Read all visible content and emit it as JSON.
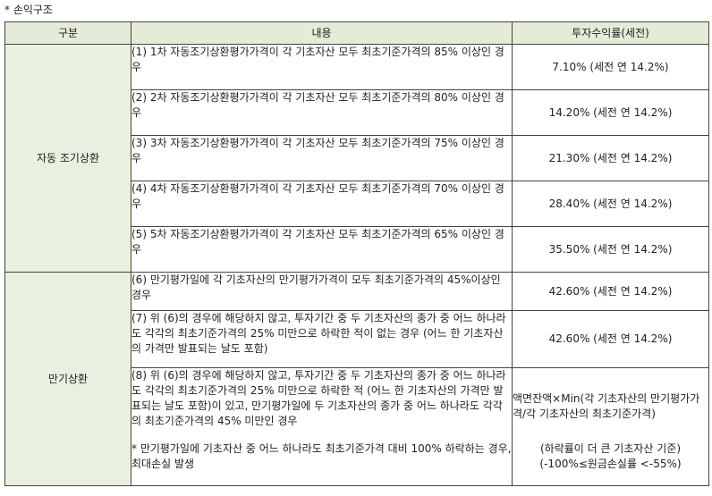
{
  "section_title": "* 손익구조",
  "headers": {
    "category": "구분",
    "description": "내용",
    "return": "투자수익률(세전)"
  },
  "early_redemption": {
    "label": "자동 조기상환",
    "rows": [
      {
        "desc": "(1) 1차 자동조기상환평가가격이 각 기초자산 모두 최초기준가격의 85% 이상인 경우",
        "rate": "7.10% (세전 연 14.2%)"
      },
      {
        "desc": "(2) 2차 자동조기상환평가가격이 각 기초자산 모두 최초기준가격의 80% 이상인 경우",
        "rate": "14.20% (세전 연 14.2%)"
      },
      {
        "desc": "(3) 3차 자동조기상환평가가격이 각 기초자산 모두 최초기준가격의 75% 이상인 경우",
        "rate": "21.30% (세전 연 14.2%)"
      },
      {
        "desc": "(4) 4차 자동조기상환평가가격이 각 기초자산 모두 최초기준가격의 70% 이상인 경우",
        "rate": "28.40% (세전 연 14.2%)"
      },
      {
        "desc": "(5) 5차 자동조기상환평가가격이 각 기초자산 모두 최초기준가격의 65% 이상인 경우",
        "rate": "35.50% (세전 연 14.2%)"
      }
    ]
  },
  "maturity": {
    "label": "만기상환",
    "row6": {
      "desc": "(6) 만기평가일에 각 기초자산의 만기평가가격이 모두 최초기준가격의 45%이상인 경우",
      "rate": "42.60% (세전 연 14.2%)"
    },
    "row7": {
      "desc": "(7) 위 (6)의 경우에 해당하지 않고, 투자기간 중 두 기초자산의 종가 중 어느 하나라도 각각의 최초기준가격의 25% 미만으로 하락한 적이 없는 경우 (어느 한 기초자산의 가격만 발표되는 날도 포함)",
      "rate": "42.60% (세전 연 14.2%)"
    },
    "row8": {
      "desc": "(8) 위 (6)의 경우에 해당하지 않고, 투자기간 중 두 기초자산의 종가 중 어느 하나라도 각각의 최초기준가격의 25% 미만으로 하락한 적 (어느 한 기초자산의 가격만 발표되는 날도 포함)이 있고, 만기평가일에 두 기초자산의 종가 중 어느 하나라도 각각의 최초기준가격의 45% 미만인 경우",
      "note": "* 만기평가일에 기초자산 중 어느 하나라도 최초기준가격 대비 100% 하락하는 경우, 최대손실 발생",
      "formula": "액면잔액×Min(각 기초자산의 만기평가가격/각 기초자산의 최초기준가격)",
      "basis": "(하락률이 더 큰 기초자산 기준)",
      "range": "(-100%≤원금손실률 <-55%)"
    }
  }
}
